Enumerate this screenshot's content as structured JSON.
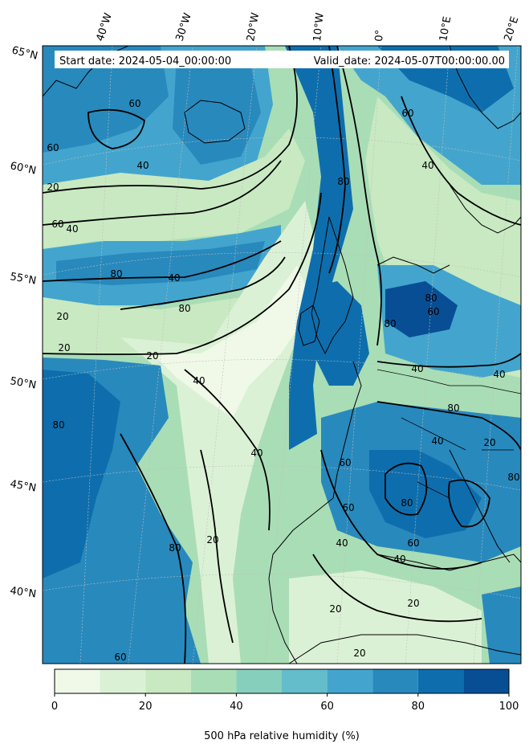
{
  "header": {
    "start_label": "Start date: 2024-05-04_00:00:00",
    "valid_label": "Valid_date: 2024-05-07T00:00:00.00"
  },
  "longitude_labels": [
    "40°W",
    "30°W",
    "20°W",
    "10°W",
    "0°",
    "10°E",
    "20°E"
  ],
  "latitude_labels": [
    "65°N",
    "60°N",
    "55°N",
    "50°N",
    "45°N",
    "40°N"
  ],
  "colorbar": {
    "title": "500 hPa relative humidity (%)",
    "ticks": [
      "0",
      "20",
      "40",
      "60",
      "80",
      "100"
    ],
    "levels": [
      0,
      10,
      20,
      30,
      40,
      50,
      60,
      70,
      80,
      90,
      100
    ],
    "colors": [
      "#f0f9e8",
      "#dbf1d5",
      "#c8e9c2",
      "#a9ddb6",
      "#86cfbc",
      "#63bdcb",
      "#43a5cd",
      "#2889bd",
      "#0e6ead",
      "#084e95"
    ]
  },
  "contour_labels": [
    "20",
    "40",
    "60",
    "80"
  ],
  "colors": {
    "contour": "#000000",
    "coastline": "#000000",
    "gridline": "#bfbfbf"
  }
}
